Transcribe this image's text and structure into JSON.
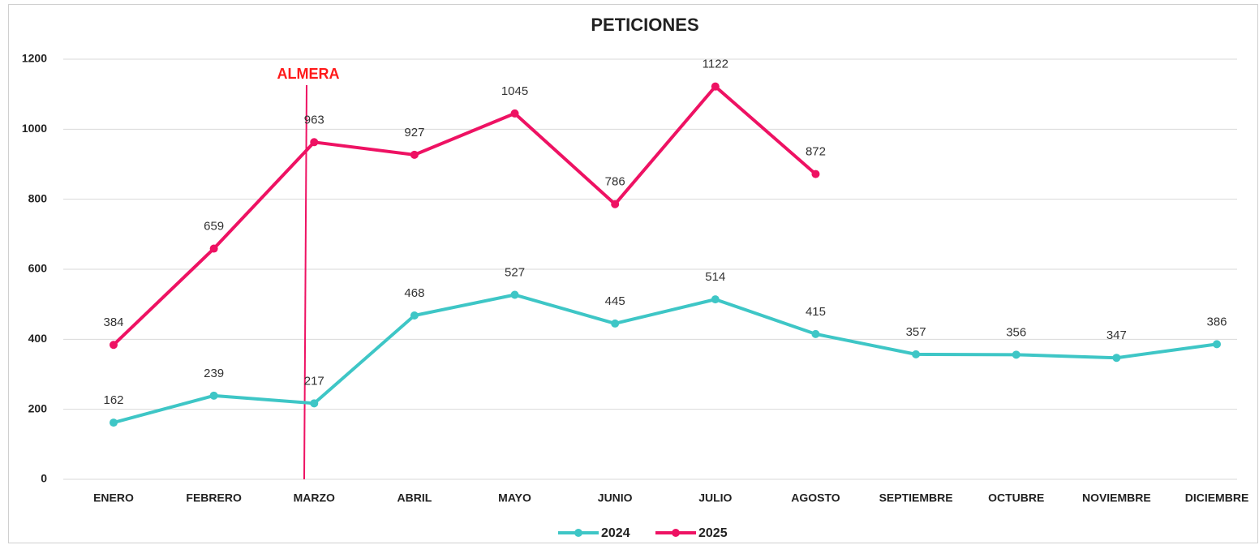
{
  "chart_data": {
    "type": "line",
    "title": "PETICIONES",
    "categories": [
      "ENERO",
      "FEBRERO",
      "MARZO",
      "ABRIL",
      "MAYO",
      "JUNIO",
      "JULIO",
      "AGOSTO",
      "SEPTIEMBRE",
      "OCTUBRE",
      "NOVIEMBRE",
      "DICIEMBRE"
    ],
    "series": [
      {
        "name": "2024",
        "color": "#3ec6c6",
        "values": [
          162,
          239,
          217,
          468,
          527,
          445,
          514,
          415,
          357,
          356,
          347,
          386
        ]
      },
      {
        "name": "2025",
        "color": "#ee1263",
        "values": [
          384,
          659,
          963,
          927,
          1045,
          786,
          1122,
          872,
          null,
          null,
          null,
          null
        ]
      }
    ],
    "annotation": "ALMERA",
    "ylim": [
      0,
      1200
    ],
    "yticks": [
      0,
      200,
      400,
      600,
      800,
      1000,
      1200
    ],
    "grid": true,
    "legend": "bottom"
  }
}
